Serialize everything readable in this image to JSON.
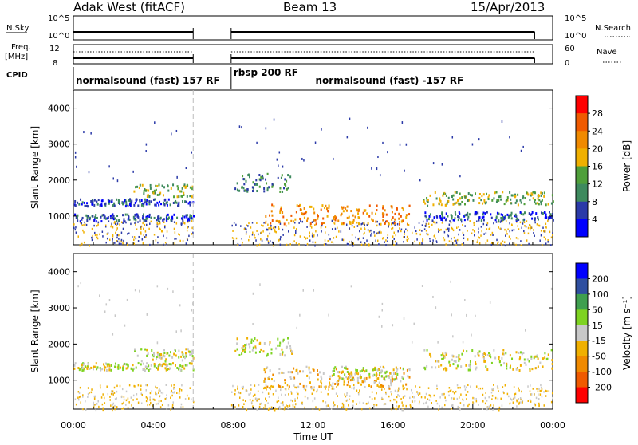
{
  "header": {
    "station": "Adak West (fitACF)",
    "beam": "Beam 13",
    "date": "15/Apr/2013"
  },
  "summary": {
    "nsky_label": "N.Sky",
    "nsky_ticks": [
      "10^5",
      "10^0"
    ],
    "nsearch_label": "N.Search",
    "nsearch_ticks": [
      "10^5",
      "10^0"
    ],
    "freq_label_1": "Freq.",
    "freq_label_2": "[MHz]",
    "freq_ticks": [
      "12",
      "8"
    ],
    "nave_label": "Nave",
    "nave_ticks": [
      "60",
      "0"
    ],
    "cpid_label": "CPID"
  },
  "modes": [
    {
      "label": "normalsound (fast) 157 RF",
      "start_h": 0,
      "end_h": 6
    },
    {
      "label": "rbsp 200 RF",
      "start_h": 7.9,
      "end_h": 12
    },
    {
      "label": "normalsound (fast) -157 RF",
      "start_h": 12,
      "end_h": 24
    }
  ],
  "colors": {
    "power": [
      "#0000ff",
      "#2b3aa8",
      "#3e8a5e",
      "#4f9f3a",
      "#f0b000",
      "#f08a00",
      "#f05a00",
      "#ff0000"
    ],
    "velocity": [
      "#0000ff",
      "#2f4fa0",
      "#3f9f4f",
      "#7ed321",
      "#c8c8c8",
      "#f0b000",
      "#f08a00",
      "#f05a00",
      "#ff0000"
    ]
  },
  "chart_data": [
    {
      "type": "heatmap",
      "panel": "power",
      "ylabel": "Slant Range [km]",
      "yticks": [
        1000,
        2000,
        3000,
        4000
      ],
      "ylim": [
        200,
        4500
      ],
      "xlim": [
        0,
        24
      ],
      "colorbar_label": "Power [dB]",
      "colorbar_ticks": [
        "4",
        "8",
        "12",
        "16",
        "20",
        "24",
        "28"
      ],
      "echo_bands": [
        {
          "t0": 0,
          "t1": 6,
          "r0": 1300,
          "r1": 1500,
          "level": 1
        },
        {
          "t0": 0,
          "t1": 6,
          "r0": 880,
          "r1": 1080,
          "level": 1
        },
        {
          "t0": 3,
          "t1": 6,
          "r0": 1550,
          "r1": 1900,
          "level": 3
        },
        {
          "t0": 8,
          "t1": 11,
          "r0": 1700,
          "r1": 2200,
          "level": 2
        },
        {
          "t0": 9.5,
          "t1": 16.8,
          "r0": 800,
          "r1": 1350,
          "level": 5
        },
        {
          "t0": 17.5,
          "t1": 24,
          "r0": 1300,
          "r1": 1700,
          "level": 3
        },
        {
          "t0": 17.5,
          "t1": 24,
          "r0": 900,
          "r1": 1150,
          "level": 1
        }
      ]
    },
    {
      "type": "heatmap",
      "panel": "velocity",
      "ylabel": "Slant Range [km]",
      "yticks": [
        1000,
        2000,
        3000,
        4000
      ],
      "ylim": [
        200,
        4500
      ],
      "xlim": [
        0,
        24
      ],
      "colorbar_label": "Velocity [m s⁻¹]",
      "colorbar_ticks": [
        "200",
        "100",
        "50",
        "15",
        "-15",
        "-50",
        "-100",
        "-200"
      ],
      "xlabel": "Time UT",
      "xticks": [
        "00:00",
        "04:00",
        "08:00",
        "12:00",
        "16:00",
        "20:00",
        "00:00"
      ],
      "echo_bands": [
        {
          "t0": 0,
          "t1": 6,
          "r0": 1300,
          "r1": 1500,
          "level": 4
        },
        {
          "t0": 3,
          "t1": 6,
          "r0": 1550,
          "r1": 1900,
          "level": 4
        },
        {
          "t0": 8,
          "t1": 11,
          "r0": 1700,
          "r1": 2200,
          "level": 4
        },
        {
          "t0": 9.5,
          "t1": 16.8,
          "r0": 800,
          "r1": 1400,
          "level": 5
        },
        {
          "t0": 13,
          "t1": 16.5,
          "r0": 1000,
          "r1": 1400,
          "level": 4
        },
        {
          "t0": 17.5,
          "t1": 24,
          "r0": 1300,
          "r1": 1900,
          "level": 4
        }
      ]
    }
  ]
}
